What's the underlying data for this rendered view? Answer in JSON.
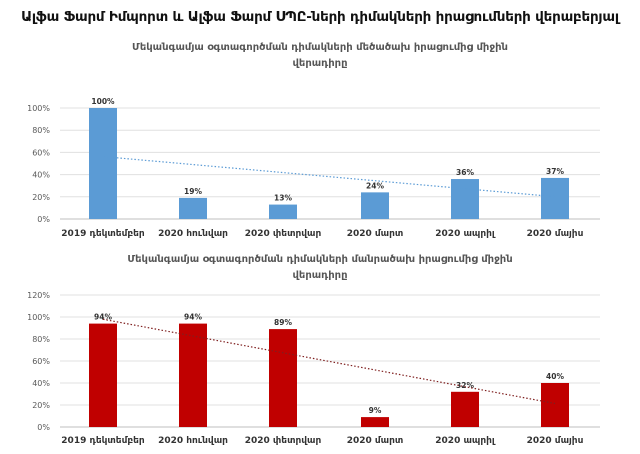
{
  "title": "Ալֆա Ֆարմ Իմպորտ և Ալֆա Ֆարմ ՍՊԸ-ների դիմակների իրացումների վերաբերյալ",
  "chart_data": [
    {
      "type": "bar",
      "title_lines": [
        "Մեկանգամյա օգտագործման դիմակների մեծածախ իրացումից միջին",
        "վերադիրը"
      ],
      "categories": [
        "2019 դեկտեմբեր",
        "2020 հունվար",
        "2020 փետրվար",
        "2020 մարտ",
        "2020 ապրիլ",
        "2020 մայիս"
      ],
      "values": [
        100,
        19,
        13,
        24,
        36,
        37
      ],
      "data_labels": [
        "100%",
        "19%",
        "13%",
        "24%",
        "36%",
        "37%"
      ],
      "ylim": [
        0,
        100
      ],
      "yticks": [
        "0%",
        "20%",
        "40%",
        "60%",
        "80%",
        "100%"
      ],
      "trendline": "linear",
      "color": "#5b9bd5",
      "trend_color": "#5b9bd5",
      "grid": true
    },
    {
      "type": "bar",
      "title_lines": [
        "Մեկանգամյա օգտագործման դիմակների մանրածախ իրացումից միջին",
        "վերադիրը"
      ],
      "categories": [
        "2019 դեկտեմբեր",
        "2020 հունվար",
        "2020 փետրվար",
        "2020 մարտ",
        "2020 ապրիլ",
        "2020 մայիս"
      ],
      "values": [
        94,
        94,
        89,
        9,
        32,
        40
      ],
      "data_labels": [
        "94%",
        "94%",
        "89%",
        "9%",
        "32%",
        "40%"
      ],
      "ylim": [
        0,
        120
      ],
      "yticks": [
        "0%",
        "20%",
        "40%",
        "60%",
        "80%",
        "100%",
        "120%"
      ],
      "trendline": "linear",
      "color": "#c00000",
      "trend_color": "#7f1f1f",
      "grid": true
    }
  ]
}
